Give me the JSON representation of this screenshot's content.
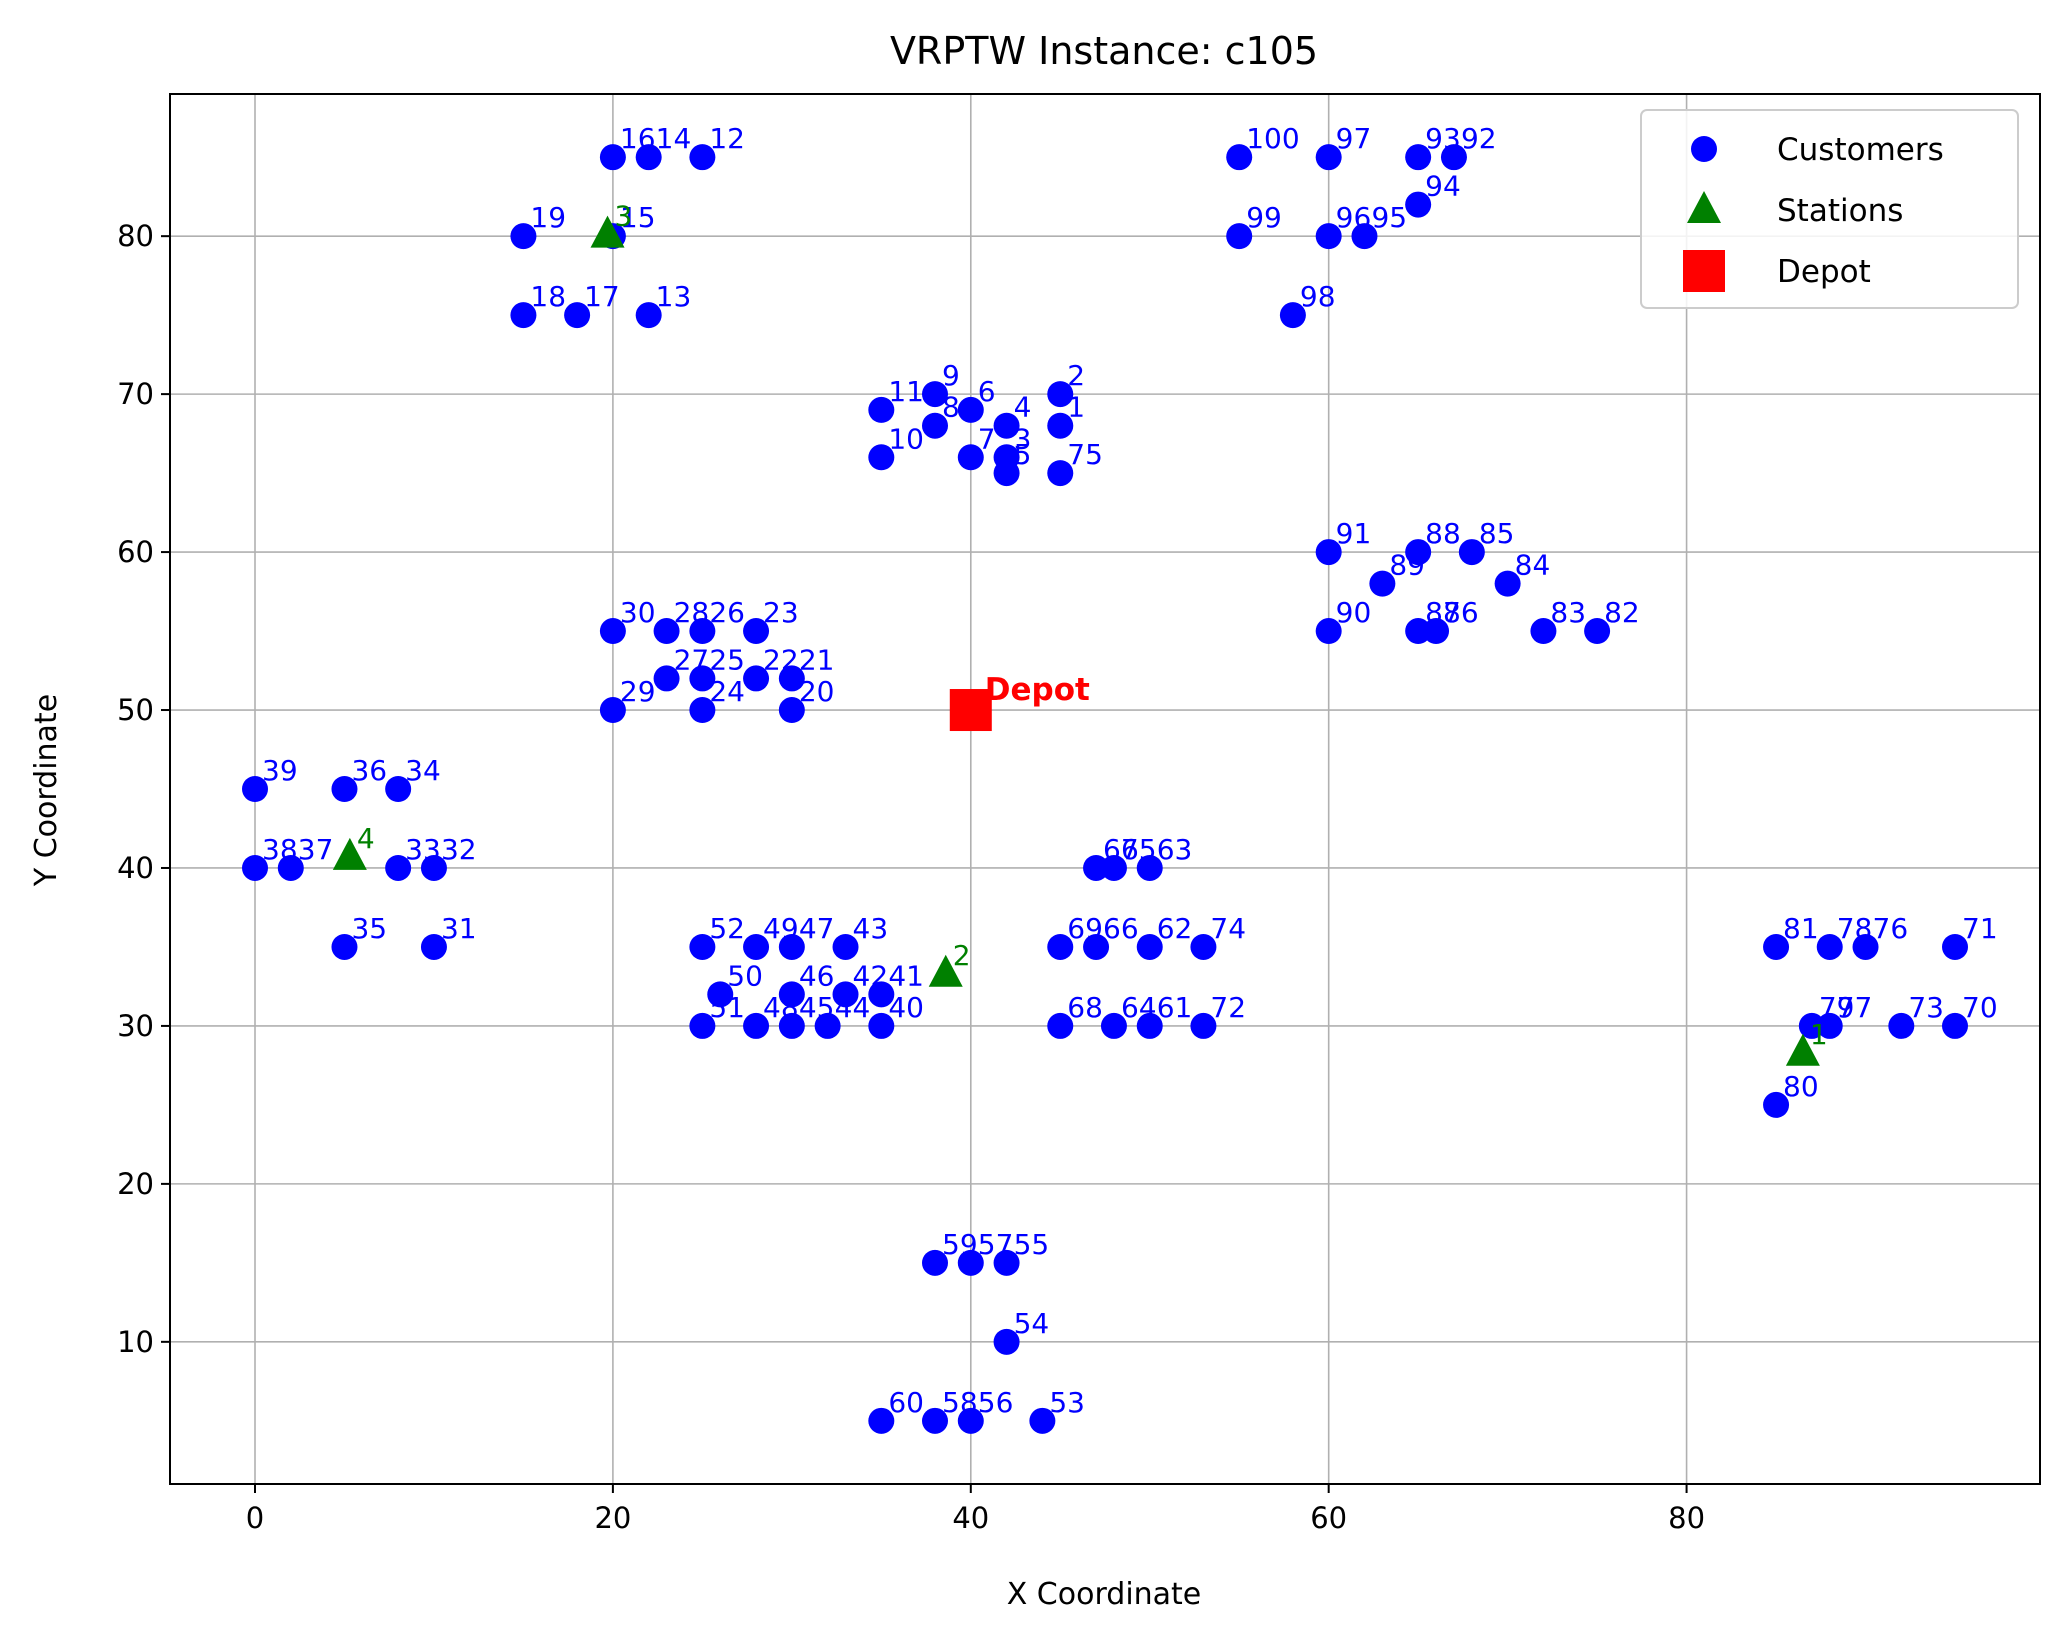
{
  "chart_data": {
    "type": "scatter",
    "title": "VRPTW Instance: c105",
    "xlabel": "X Coordinate",
    "ylabel": "Y Coordinate",
    "xlim": [
      -4.75,
      99.75
    ],
    "ylim": [
      1.0,
      89.0
    ],
    "xticks": [
      0,
      20,
      40,
      60,
      80
    ],
    "yticks": [
      10,
      20,
      30,
      40,
      50,
      60,
      70,
      80
    ],
    "grid": true,
    "legend_position": "top-right",
    "legend": [
      {
        "label": "Customers",
        "marker": "circle",
        "color": "#0000ff"
      },
      {
        "label": "Stations",
        "marker": "triangle",
        "color": "#008000"
      },
      {
        "label": "Depot",
        "marker": "square",
        "color": "#ff0000"
      }
    ],
    "depot": {
      "label": "Depot",
      "x": 40,
      "y": 50
    },
    "stations": [
      {
        "id": "1",
        "x": 86.5,
        "y": 28.3
      },
      {
        "id": "2",
        "x": 38.6,
        "y": 33.3
      },
      {
        "id": "3",
        "x": 19.7,
        "y": 80.1
      },
      {
        "id": "4",
        "x": 5.3,
        "y": 40.7
      }
    ],
    "customers": [
      {
        "id": "1",
        "x": 45,
        "y": 68
      },
      {
        "id": "2",
        "x": 45,
        "y": 70
      },
      {
        "id": "3",
        "x": 42,
        "y": 66
      },
      {
        "id": "4",
        "x": 42,
        "y": 68
      },
      {
        "id": "5",
        "x": 42,
        "y": 65
      },
      {
        "id": "6",
        "x": 40,
        "y": 69
      },
      {
        "id": "7",
        "x": 40,
        "y": 66
      },
      {
        "id": "8",
        "x": 38,
        "y": 68
      },
      {
        "id": "9",
        "x": 38,
        "y": 70
      },
      {
        "id": "10",
        "x": 35,
        "y": 66
      },
      {
        "id": "11",
        "x": 35,
        "y": 69
      },
      {
        "id": "12",
        "x": 25,
        "y": 85
      },
      {
        "id": "13",
        "x": 22,
        "y": 75
      },
      {
        "id": "14",
        "x": 22,
        "y": 85
      },
      {
        "id": "15",
        "x": 20,
        "y": 80
      },
      {
        "id": "16",
        "x": 20,
        "y": 85
      },
      {
        "id": "17",
        "x": 18,
        "y": 75
      },
      {
        "id": "18",
        "x": 15,
        "y": 75
      },
      {
        "id": "19",
        "x": 15,
        "y": 80
      },
      {
        "id": "20",
        "x": 30,
        "y": 50
      },
      {
        "id": "21",
        "x": 30,
        "y": 52
      },
      {
        "id": "22",
        "x": 28,
        "y": 52
      },
      {
        "id": "23",
        "x": 28,
        "y": 55
      },
      {
        "id": "24",
        "x": 25,
        "y": 50
      },
      {
        "id": "25",
        "x": 25,
        "y": 52
      },
      {
        "id": "26",
        "x": 25,
        "y": 55
      },
      {
        "id": "27",
        "x": 23,
        "y": 52
      },
      {
        "id": "28",
        "x": 23,
        "y": 55
      },
      {
        "id": "29",
        "x": 20,
        "y": 50
      },
      {
        "id": "30",
        "x": 20,
        "y": 55
      },
      {
        "id": "31",
        "x": 10,
        "y": 35
      },
      {
        "id": "32",
        "x": 10,
        "y": 40
      },
      {
        "id": "33",
        "x": 8,
        "y": 40
      },
      {
        "id": "34",
        "x": 8,
        "y": 45
      },
      {
        "id": "35",
        "x": 5,
        "y": 35
      },
      {
        "id": "36",
        "x": 5,
        "y": 45
      },
      {
        "id": "37",
        "x": 2,
        "y": 40
      },
      {
        "id": "38",
        "x": 0,
        "y": 40
      },
      {
        "id": "39",
        "x": 0,
        "y": 45
      },
      {
        "id": "40",
        "x": 35,
        "y": 30
      },
      {
        "id": "41",
        "x": 35,
        "y": 32
      },
      {
        "id": "42",
        "x": 33,
        "y": 32
      },
      {
        "id": "43",
        "x": 33,
        "y": 35
      },
      {
        "id": "44",
        "x": 32,
        "y": 30
      },
      {
        "id": "45",
        "x": 30,
        "y": 30
      },
      {
        "id": "46",
        "x": 30,
        "y": 32
      },
      {
        "id": "47",
        "x": 30,
        "y": 35
      },
      {
        "id": "48",
        "x": 28,
        "y": 30
      },
      {
        "id": "49",
        "x": 28,
        "y": 35
      },
      {
        "id": "50",
        "x": 26,
        "y": 32
      },
      {
        "id": "51",
        "x": 25,
        "y": 30
      },
      {
        "id": "52",
        "x": 25,
        "y": 35
      },
      {
        "id": "53",
        "x": 44,
        "y": 5
      },
      {
        "id": "54",
        "x": 42,
        "y": 10
      },
      {
        "id": "55",
        "x": 42,
        "y": 15
      },
      {
        "id": "56",
        "x": 40,
        "y": 5
      },
      {
        "id": "57",
        "x": 40,
        "y": 15
      },
      {
        "id": "58",
        "x": 38,
        "y": 5
      },
      {
        "id": "59",
        "x": 38,
        "y": 15
      },
      {
        "id": "60",
        "x": 35,
        "y": 5
      },
      {
        "id": "61",
        "x": 50,
        "y": 30
      },
      {
        "id": "62",
        "x": 50,
        "y": 35
      },
      {
        "id": "63",
        "x": 50,
        "y": 40
      },
      {
        "id": "64",
        "x": 48,
        "y": 30
      },
      {
        "id": "65",
        "x": 48,
        "y": 40
      },
      {
        "id": "66",
        "x": 47,
        "y": 35
      },
      {
        "id": "67",
        "x": 47,
        "y": 40
      },
      {
        "id": "68",
        "x": 45,
        "y": 30
      },
      {
        "id": "69",
        "x": 45,
        "y": 35
      },
      {
        "id": "70",
        "x": 95,
        "y": 30
      },
      {
        "id": "71",
        "x": 95,
        "y": 35
      },
      {
        "id": "72",
        "x": 53,
        "y": 30
      },
      {
        "id": "73",
        "x": 92,
        "y": 30
      },
      {
        "id": "74",
        "x": 53,
        "y": 35
      },
      {
        "id": "75",
        "x": 45,
        "y": 65
      },
      {
        "id": "76",
        "x": 90,
        "y": 35
      },
      {
        "id": "77",
        "x": 88,
        "y": 30
      },
      {
        "id": "78",
        "x": 88,
        "y": 35
      },
      {
        "id": "79",
        "x": 87,
        "y": 30
      },
      {
        "id": "80",
        "x": 85,
        "y": 25
      },
      {
        "id": "81",
        "x": 85,
        "y": 35
      },
      {
        "id": "82",
        "x": 75,
        "y": 55
      },
      {
        "id": "83",
        "x": 72,
        "y": 55
      },
      {
        "id": "84",
        "x": 70,
        "y": 58
      },
      {
        "id": "85",
        "x": 68,
        "y": 60
      },
      {
        "id": "86",
        "x": 66,
        "y": 55
      },
      {
        "id": "87",
        "x": 65,
        "y": 55
      },
      {
        "id": "88",
        "x": 65,
        "y": 60
      },
      {
        "id": "89",
        "x": 63,
        "y": 58
      },
      {
        "id": "90",
        "x": 60,
        "y": 55
      },
      {
        "id": "91",
        "x": 60,
        "y": 60
      },
      {
        "id": "92",
        "x": 67,
        "y": 85
      },
      {
        "id": "93",
        "x": 65,
        "y": 85
      },
      {
        "id": "94",
        "x": 65,
        "y": 82
      },
      {
        "id": "95",
        "x": 62,
        "y": 80
      },
      {
        "id": "96",
        "x": 60,
        "y": 80
      },
      {
        "id": "97",
        "x": 60,
        "y": 85
      },
      {
        "id": "98",
        "x": 58,
        "y": 75
      },
      {
        "id": "99",
        "x": 55,
        "y": 80
      },
      {
        "id": "100",
        "x": 55,
        "y": 85
      }
    ],
    "colors": {
      "customer": "#0000ff",
      "station": "#008000",
      "depot": "#ff0000",
      "grid": "#b0b0b0",
      "axes": "#000000"
    }
  }
}
